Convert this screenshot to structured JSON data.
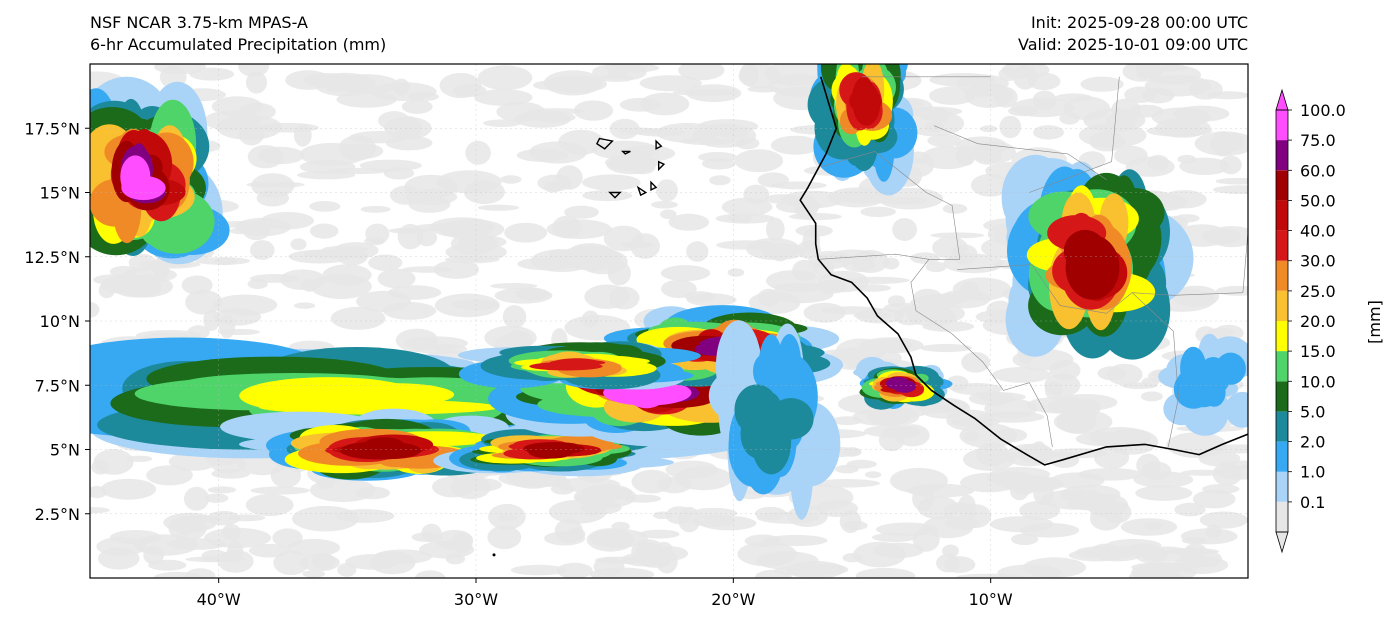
{
  "titles": {
    "model": "NSF NCAR 3.75-km MPAS-A",
    "field": "6-hr Accumulated Precipitation (mm)",
    "init": "Init: 2025-09-28 00:00 UTC",
    "valid": "Valid: 2025-10-01 09:00 UTC"
  },
  "map": {
    "lon_range": [
      -45,
      0
    ],
    "lat_range": [
      0,
      20
    ],
    "lon_ticks": [
      {
        "value": -40,
        "label": "40°W"
      },
      {
        "value": -30,
        "label": "30°W"
      },
      {
        "value": -20,
        "label": "20°W"
      },
      {
        "value": -10,
        "label": "10°W"
      }
    ],
    "lat_ticks": [
      {
        "value": 2.5,
        "label": "2.5°N"
      },
      {
        "value": 5,
        "label": "5°N"
      },
      {
        "value": 7.5,
        "label": "7.5°N"
      },
      {
        "value": 10,
        "label": "10°N"
      },
      {
        "value": 12.5,
        "label": "12.5°N"
      },
      {
        "value": 15,
        "label": "15°N"
      },
      {
        "value": 17.5,
        "label": "17.5°N"
      }
    ],
    "precip_features": [
      {
        "lon": -43.0,
        "lat": 15.5,
        "rlon": 2.2,
        "rlat": 2.3,
        "peak": 100
      },
      {
        "lon": -35.0,
        "lat": 7.0,
        "rlon": 9.0,
        "rlat": 1.5,
        "peak": 20
      },
      {
        "lon": -33.5,
        "lat": 5.0,
        "rlon": 3.5,
        "rlat": 0.9,
        "peak": 60
      },
      {
        "lon": -27.0,
        "lat": 5.0,
        "rlon": 2.8,
        "rlat": 0.6,
        "peak": 60
      },
      {
        "lon": -23.0,
        "lat": 7.3,
        "rlon": 4.0,
        "rlat": 1.3,
        "peak": 100
      },
      {
        "lon": -20.5,
        "lat": 9.0,
        "rlon": 3.0,
        "rlat": 1.0,
        "peak": 75
      },
      {
        "lon": -26.0,
        "lat": 8.3,
        "rlon": 3.0,
        "rlat": 0.7,
        "peak": 40
      },
      {
        "lon": -15.0,
        "lat": 18.5,
        "rlon": 1.4,
        "rlat": 2.0,
        "peak": 50
      },
      {
        "lon": -6.0,
        "lat": 12.5,
        "rlon": 2.3,
        "rlat": 2.8,
        "peak": 60
      },
      {
        "lon": -13.5,
        "lat": 7.5,
        "rlon": 1.2,
        "rlat": 0.6,
        "peak": 75
      },
      {
        "lon": -1.5,
        "lat": 7.5,
        "rlon": 1.3,
        "rlat": 1.2,
        "peak": 2
      },
      {
        "lon": -18.5,
        "lat": 6.5,
        "rlon": 1.5,
        "rlat": 2.5,
        "peak": 5
      }
    ],
    "coastline": [
      [
        -16.6,
        19.5
      ],
      [
        -16.3,
        18.5
      ],
      [
        -16.0,
        17.5
      ],
      [
        -16.4,
        16.5
      ],
      [
        -17.1,
        15.2
      ],
      [
        -17.4,
        14.7
      ],
      [
        -16.8,
        13.8
      ],
      [
        -16.8,
        13.0
      ],
      [
        -16.7,
        12.4
      ],
      [
        -16.2,
        11.8
      ],
      [
        -15.4,
        11.5
      ],
      [
        -14.8,
        10.9
      ],
      [
        -14.4,
        10.2
      ],
      [
        -13.6,
        9.5
      ],
      [
        -13.1,
        8.6
      ],
      [
        -12.9,
        7.9
      ],
      [
        -12.3,
        7.3
      ],
      [
        -11.4,
        6.7
      ],
      [
        -10.6,
        6.2
      ],
      [
        -9.6,
        5.4
      ],
      [
        -8.6,
        4.8
      ],
      [
        -7.9,
        4.4
      ],
      [
        -7.2,
        4.6
      ],
      [
        -5.5,
        5.1
      ],
      [
        -4.0,
        5.2
      ],
      [
        -2.9,
        5.0
      ],
      [
        -1.9,
        4.8
      ],
      [
        -1.0,
        5.2
      ],
      [
        0.0,
        5.6
      ]
    ],
    "islands": [
      [
        [
          -25.2,
          17.1
        ],
        [
          -24.7,
          17.0
        ],
        [
          -25.0,
          16.7
        ],
        [
          -25.3,
          16.9
        ]
      ],
      [
        [
          -24.3,
          16.6
        ],
        [
          -24.0,
          16.6
        ],
        [
          -24.2,
          16.5
        ]
      ],
      [
        [
          -22.9,
          16.2
        ],
        [
          -22.7,
          16.1
        ],
        [
          -22.9,
          15.9
        ]
      ],
      [
        [
          -23.0,
          17.0
        ],
        [
          -22.8,
          16.8
        ],
        [
          -23.0,
          16.7
        ]
      ],
      [
        [
          -24.8,
          15.0
        ],
        [
          -24.4,
          15.0
        ],
        [
          -24.6,
          14.8
        ]
      ],
      [
        [
          -23.7,
          15.2
        ],
        [
          -23.4,
          15.0
        ],
        [
          -23.6,
          14.9
        ]
      ],
      [
        [
          -23.2,
          15.4
        ],
        [
          -23.0,
          15.2
        ],
        [
          -23.2,
          15.1
        ]
      ]
    ],
    "borders": [
      [
        [
          -16.6,
          16.0
        ],
        [
          -14.5,
          16.6
        ],
        [
          -12.5,
          15.0
        ],
        [
          -11.5,
          14.5
        ],
        [
          -11.2,
          12.4
        ],
        [
          -12.4,
          12.4
        ],
        [
          -13.7,
          12.6
        ],
        [
          -16.7,
          12.4
        ]
      ],
      [
        [
          -12.4,
          12.4
        ],
        [
          -13.1,
          11.5
        ],
        [
          -12.9,
          10.4
        ],
        [
          -11.5,
          9.5
        ],
        [
          -10.3,
          8.4
        ]
      ],
      [
        [
          -8.5,
          15.0
        ],
        [
          -5.3,
          16.2
        ],
        [
          -5.0,
          19.5
        ]
      ],
      [
        [
          -11.3,
          12.0
        ],
        [
          -8.4,
          12.2
        ],
        [
          -7.3,
          10.6
        ],
        [
          -5.5,
          10.3
        ],
        [
          -4.5,
          11.1
        ],
        [
          -2.9,
          9.6
        ],
        [
          -2.7,
          7.0
        ],
        [
          -3.1,
          5.1
        ]
      ],
      [
        [
          -8.5,
          7.6
        ],
        [
          -7.8,
          6.3
        ],
        [
          -7.6,
          5.1
        ]
      ],
      [
        [
          -10.3,
          8.4
        ],
        [
          -9.5,
          7.3
        ],
        [
          -8.5,
          7.6
        ]
      ],
      [
        [
          -12.2,
          17.6
        ],
        [
          -10.5,
          16.9
        ],
        [
          -7.0,
          16.5
        ],
        [
          -5.5,
          15.5
        ]
      ],
      [
        [
          -4.5,
          11.1
        ],
        [
          -2.9,
          11.0
        ],
        [
          -0.2,
          11.1
        ],
        [
          0.0,
          13.5
        ]
      ],
      [
        [
          -15.0,
          19.5
        ],
        [
          -12.2,
          19.5
        ],
        [
          -10.0,
          19.5
        ]
      ]
    ]
  },
  "colorbar": {
    "unit_label": "[mm]",
    "levels": [
      {
        "label": "0.1",
        "color": "#e6e6e6"
      },
      {
        "label": "1.0",
        "color": "#a9d3f7"
      },
      {
        "label": "2.0",
        "color": "#36a9f2"
      },
      {
        "label": "5.0",
        "color": "#1d8a9b"
      },
      {
        "label": "10.0",
        "color": "#1b6b1b"
      },
      {
        "label": "15.0",
        "color": "#4fd46a"
      },
      {
        "label": "20.0",
        "color": "#ffff00"
      },
      {
        "label": "25.0",
        "color": "#f9c02f"
      },
      {
        "label": "30.0",
        "color": "#f08a26"
      },
      {
        "label": "40.0",
        "color": "#d61717"
      },
      {
        "label": "50.0",
        "color": "#c10909"
      },
      {
        "label": "60.0",
        "color": "#a00000"
      },
      {
        "label": "75.0",
        "color": "#800080"
      },
      {
        "label": "100.0",
        "color": "#ff4dff"
      }
    ]
  }
}
